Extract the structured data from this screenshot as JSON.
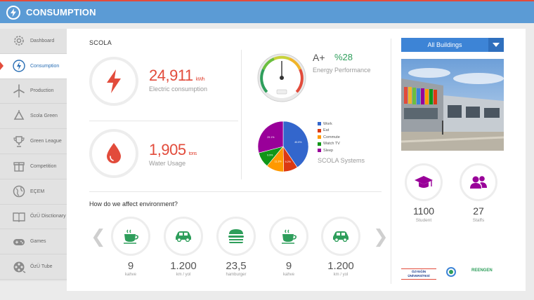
{
  "header": {
    "title": "CONSUMPTION",
    "logo_icon": "lightning-bolt-icon",
    "bar_color": "#5b9bd5",
    "accent_color": "#e24b3b"
  },
  "sidebar": {
    "items": [
      {
        "label": "Dashboard",
        "icon": "gear-icon",
        "active": false
      },
      {
        "label": "Consumption",
        "icon": "lightning-bolt-icon",
        "active": true
      },
      {
        "label": "Production",
        "icon": "wind-turbine-icon",
        "active": false
      },
      {
        "label": "Scola Green",
        "icon": "recycle-icon",
        "active": false
      },
      {
        "label": "Green League",
        "icon": "trophy-icon",
        "active": false
      },
      {
        "label": "Competition",
        "icon": "gift-icon",
        "active": false
      },
      {
        "label": "EÇEM",
        "icon": "globe-icon",
        "active": false
      },
      {
        "label": "ÖzÜ Disctionary",
        "icon": "book-icon",
        "active": false
      },
      {
        "label": "Games",
        "icon": "gamepad-icon",
        "active": false
      },
      {
        "label": "ÖzÜ Tube",
        "icon": "film-reel-icon",
        "active": false
      }
    ]
  },
  "main": {
    "section_title": "SCOLA",
    "electric": {
      "value": "24,911",
      "unit": "kWh",
      "label": "Electric consumption",
      "icon": "lightning-bolt-icon"
    },
    "water": {
      "value": "1,905",
      "unit": "tons",
      "label": "Water Usage",
      "icon": "water-drop-icon"
    },
    "energy": {
      "grade": "A+",
      "percent": "%28",
      "label": "Energy Performance",
      "gauge_level": 0.5
    },
    "systems": {
      "label": "SCOLA Systems"
    },
    "environment": {
      "title": "How do we affect environment?",
      "items": [
        {
          "value": "9",
          "unit": "kahve",
          "icon": "coffee-cup-icon"
        },
        {
          "value": "1.200",
          "unit": "km / yol",
          "icon": "car-icon"
        },
        {
          "value": "23,5",
          "unit": "hamburger",
          "icon": "hamburger-icon"
        },
        {
          "value": "9",
          "unit": "kahve",
          "icon": "coffee-cup-icon"
        },
        {
          "value": "1.200",
          "unit": "km / yol",
          "icon": "car-icon"
        }
      ]
    }
  },
  "right": {
    "dropdown": {
      "selected": "All Buildings"
    },
    "student": {
      "value": "1100",
      "label": "Student",
      "icon": "graduation-cap-icon"
    },
    "staff": {
      "value": "27",
      "label": "Staffs",
      "icon": "people-icon"
    },
    "partners": {
      "left": "ÖZYEĞİN ÜNİVERSİTESİ",
      "right": "REENGEN"
    }
  },
  "chart_data": {
    "type": "pie",
    "categories": [
      "Work",
      "Eat",
      "Commute",
      "Watch TV",
      "Sleep"
    ],
    "values": [
      40.5,
      9.2,
      11.3,
      9.9,
      29.1
    ],
    "value_labels": [
      "40.5%",
      "9.2%",
      "11.3%",
      "9.9%",
      "29.1%"
    ],
    "colors": [
      "#3366cc",
      "#dc3912",
      "#ff9900",
      "#109618",
      "#990099"
    ],
    "legend": "right"
  }
}
